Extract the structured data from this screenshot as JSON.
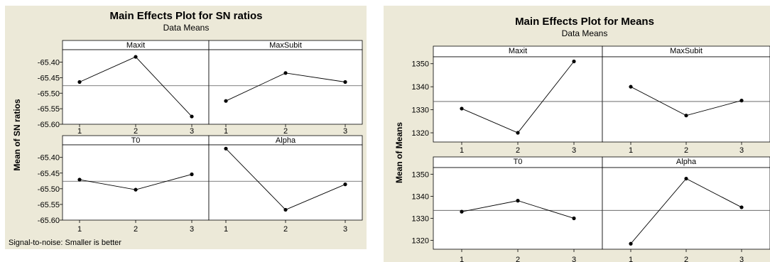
{
  "chart_data": [
    {
      "type": "line",
      "title": "Main Effects Plot for SN ratios",
      "subtitle": "Data Means",
      "ylabel": "Mean of SN ratios",
      "footnote": "Signal-to-noise: Smaller is better",
      "ylim": [
        -65.6,
        -65.36
      ],
      "yticks": [
        -65.4,
        -65.45,
        -65.5,
        -65.55,
        -65.6
      ],
      "ytick_labels": [
        "-65.40",
        "-65.45",
        "-65.50",
        "-65.55",
        "-65.60"
      ],
      "reference_line": -65.476,
      "x": [
        1,
        2,
        3
      ],
      "xtick_labels": [
        "1",
        "2",
        "3"
      ],
      "panels": [
        {
          "name": "Maxit",
          "values": [
            -65.464,
            -65.383,
            -65.575
          ]
        },
        {
          "name": "MaxSubit",
          "values": [
            -65.525,
            -65.435,
            -65.464
          ]
        },
        {
          "name": "T0",
          "values": [
            -65.471,
            -65.503,
            -65.454
          ]
        },
        {
          "name": "Alpha",
          "values": [
            -65.372,
            -65.567,
            -65.486
          ]
        }
      ],
      "colors": {
        "background": "#ece9d8",
        "plot_area": "#ffffff",
        "line": "#000000"
      }
    },
    {
      "type": "line",
      "title": "Main Effects Plot for Means",
      "subtitle": "Data Means",
      "ylabel": "Mean of Means",
      "ylim": [
        1316,
        1353
      ],
      "yticks": [
        1320,
        1330,
        1340,
        1350
      ],
      "ytick_labels": [
        "1320",
        "1330",
        "1340",
        "1350"
      ],
      "reference_line": 1333.6,
      "x": [
        1,
        2,
        3
      ],
      "xtick_labels": [
        "1",
        "2",
        "3"
      ],
      "panels": [
        {
          "name": "Maxit",
          "values": [
            1330.5,
            1320.0,
            1351.0
          ]
        },
        {
          "name": "MaxSubit",
          "values": [
            1340.0,
            1327.5,
            1334.0
          ]
        },
        {
          "name": "T0",
          "values": [
            1333.0,
            1338.0,
            1330.0
          ]
        },
        {
          "name": "Alpha",
          "values": [
            1318.5,
            1348.0,
            1335.0
          ]
        }
      ],
      "colors": {
        "background": "#ece9d8",
        "plot_area": "#ffffff",
        "line": "#000000"
      }
    }
  ]
}
